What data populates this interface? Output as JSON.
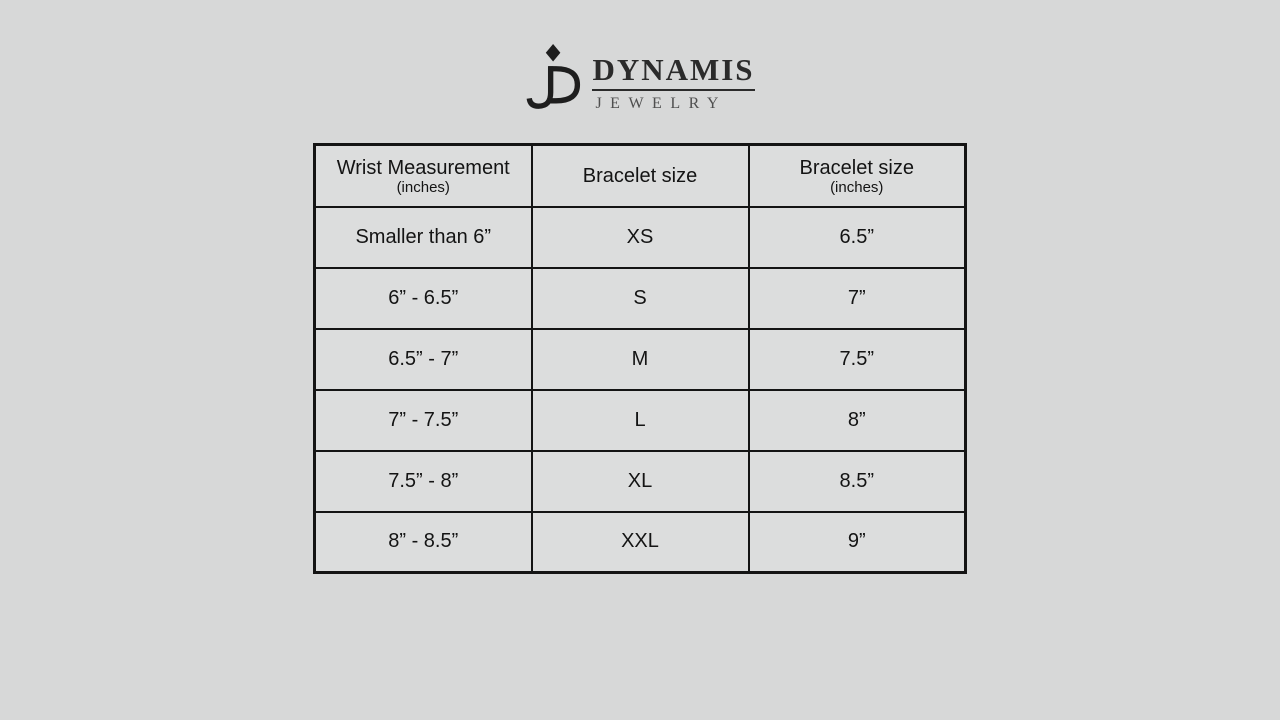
{
  "page": {
    "background_color": "#d7d8d8"
  },
  "logo": {
    "monogram": "JD",
    "brand_name": "DYNAMIS",
    "brand_subtitle": "JEWELRY",
    "brand_color": "#2b2b2b",
    "subtitle_color": "#4f4f4f"
  },
  "chart_data": {
    "type": "table",
    "columns": [
      {
        "title": "Wrist Measurement",
        "subtitle": "(inches)"
      },
      {
        "title": "Bracelet size",
        "subtitle": ""
      },
      {
        "title": "Bracelet size",
        "subtitle": "(inches)"
      }
    ],
    "rows": [
      [
        "Smaller than 6”",
        "XS",
        "6.5”"
      ],
      [
        "6” - 6.5”",
        "S",
        "7”"
      ],
      [
        "6.5” - 7”",
        "M",
        "7.5”"
      ],
      [
        "7” - 7.5”",
        "L",
        "8”"
      ],
      [
        "7.5” - 8”",
        "XL",
        "8.5”"
      ],
      [
        "8” - 8.5”",
        "XXL",
        "9”"
      ]
    ],
    "table_background": "#dcdddd",
    "border_color": "#141414",
    "layout": "3-column centered size chart, header row + 6 data rows"
  }
}
